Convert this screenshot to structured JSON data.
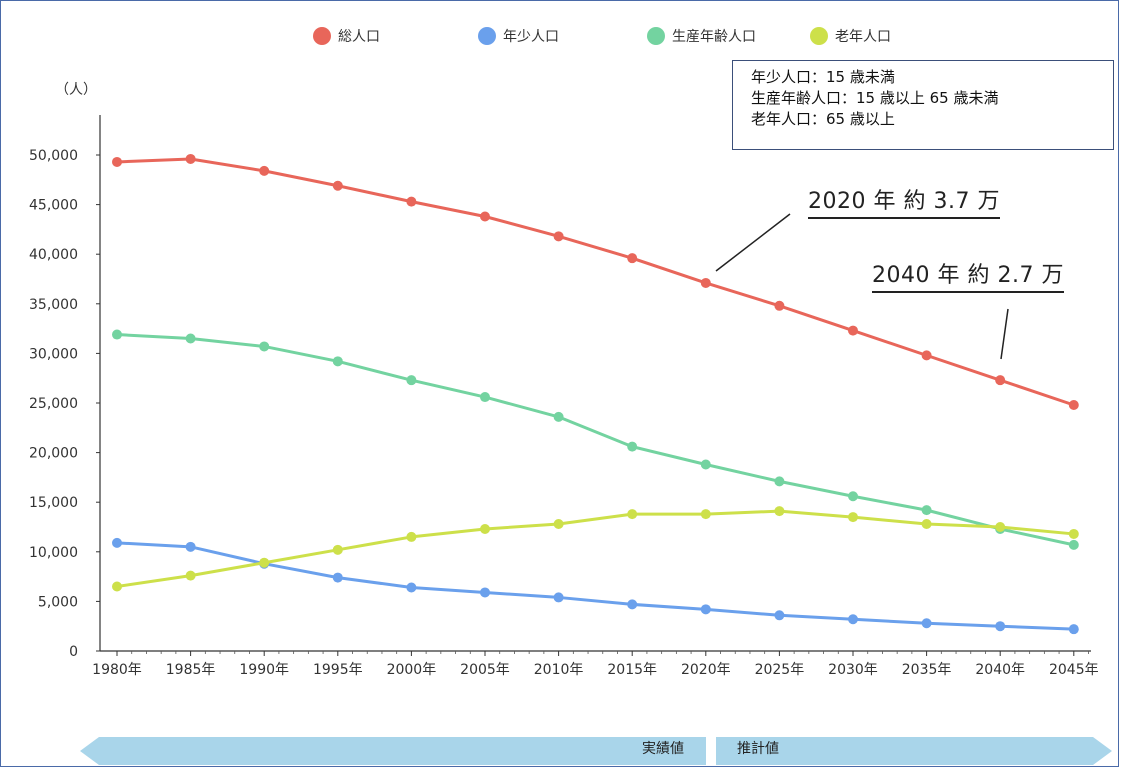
{
  "chart_data": {
    "type": "line",
    "categories": [
      "1980年",
      "1985年",
      "1990年",
      "1995年",
      "2000年",
      "2005年",
      "2010年",
      "2015年",
      "2020年",
      "2025年",
      "2030年",
      "2035年",
      "2040年",
      "2045年"
    ],
    "series": [
      {
        "name": "総人口",
        "color": "#e8665a",
        "values": [
          49300,
          49600,
          48400,
          46900,
          45300,
          43800,
          41800,
          39600,
          37100,
          34800,
          32300,
          29800,
          27300,
          24800
        ]
      },
      {
        "name": "年少人口",
        "color": "#6aa0ec",
        "values": [
          10900,
          10500,
          8800,
          7400,
          6400,
          5900,
          5400,
          4700,
          4200,
          3600,
          3200,
          2800,
          2500,
          2200
        ]
      },
      {
        "name": "生産年齢人口",
        "color": "#73d3a0",
        "values": [
          31900,
          31500,
          30700,
          29200,
          27300,
          25600,
          23600,
          20600,
          18800,
          17100,
          15600,
          14200,
          12300,
          10700
        ]
      },
      {
        "name": "老年人口",
        "color": "#cde04a",
        "values": [
          6500,
          7600,
          8900,
          10200,
          11500,
          12300,
          12800,
          13800,
          13800,
          14100,
          13500,
          12800,
          12500,
          11800
        ]
      }
    ],
    "ylim": [
      0,
      50000
    ],
    "yticks": [
      "0",
      "5,000",
      "10,000",
      "15,000",
      "20,000",
      "25,000",
      "30,000",
      "35,000",
      "40,000",
      "45,000",
      "50,000"
    ],
    "ylabel": "（人）",
    "grid": false,
    "legend": "top-center"
  },
  "notes": {
    "lines": [
      "年少人口：15 歳未満",
      "生産年齢人口：15 歳以上 65 歳未満",
      "老年人口：65 歳以上"
    ]
  },
  "annotations": {
    "a2020": "2020 年  約 3.7 万",
    "a2040": "2040 年  約 2.7 万"
  },
  "phase_arrow": {
    "actual": "実績値",
    "projected": "推計値",
    "color": "#a9d5ea"
  }
}
